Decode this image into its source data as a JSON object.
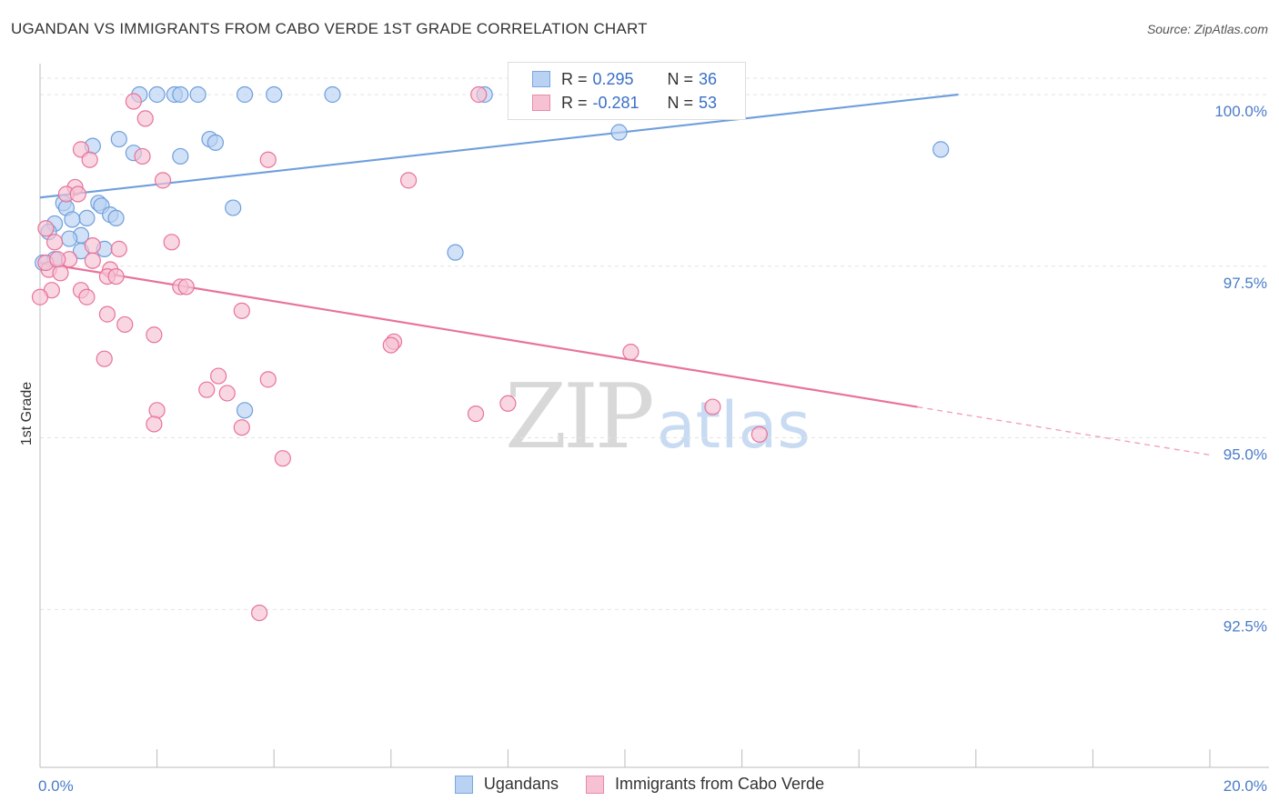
{
  "header": {
    "title": "UGANDAN VS IMMIGRANTS FROM CABO VERDE 1ST GRADE CORRELATION CHART",
    "source": "Source: ZipAtlas.com"
  },
  "legend": {
    "r_label": "R =",
    "n_label": "N =",
    "series": [
      {
        "name": "Ugandans",
        "r": "0.295",
        "n": "36",
        "color": "#7aa6e0",
        "fill": "#b9d1f2"
      },
      {
        "name": "Immigrants from Cabo Verde",
        "r": "-0.281",
        "n": "53",
        "color": "#e88aa8",
        "fill": "#f6c2d3"
      }
    ]
  },
  "watermark": {
    "zip": "ZIP",
    "atlas": "atlas"
  },
  "chart_data": {
    "type": "scatter",
    "xlabel": "",
    "ylabel": "1st Grade",
    "xlim": [
      0,
      20
    ],
    "ylim": [
      90.2,
      100.45
    ],
    "x_tick_labels": [
      "0.0%",
      "20.0%"
    ],
    "y_ticks": [
      {
        "value": 100.0,
        "label": "100.0%"
      },
      {
        "value": 97.5,
        "label": "97.5%"
      },
      {
        "value": 95.0,
        "label": "95.0%"
      },
      {
        "value": 92.5,
        "label": "92.5%"
      }
    ],
    "grid": true,
    "series": [
      {
        "name": "Ugandans",
        "color": "#6f9fdc",
        "fill": "#b9d1f2",
        "trend": {
          "x0": 0.0,
          "y0": 98.5,
          "x1": 15.7,
          "y1": 100.0,
          "dash_to": null
        },
        "points": [
          [
            1.7,
            100.0
          ],
          [
            2.0,
            100.0
          ],
          [
            2.3,
            100.0
          ],
          [
            2.4,
            100.0
          ],
          [
            2.7,
            100.0
          ],
          [
            3.5,
            100.0
          ],
          [
            4.0,
            100.0
          ],
          [
            5.0,
            100.0
          ],
          [
            7.6,
            100.0
          ],
          [
            1.35,
            99.35
          ],
          [
            1.6,
            99.15
          ],
          [
            2.4,
            99.1
          ],
          [
            2.9,
            99.35
          ],
          [
            3.0,
            99.3
          ],
          [
            0.9,
            99.25
          ],
          [
            15.4,
            99.2
          ],
          [
            9.9,
            99.45
          ],
          [
            0.4,
            98.42
          ],
          [
            0.45,
            98.35
          ],
          [
            1.0,
            98.42
          ],
          [
            1.05,
            98.38
          ],
          [
            1.2,
            98.25
          ],
          [
            1.3,
            98.2
          ],
          [
            3.3,
            98.35
          ],
          [
            0.8,
            98.2
          ],
          [
            0.55,
            98.18
          ],
          [
            0.25,
            98.12
          ],
          [
            0.15,
            98.0
          ],
          [
            0.7,
            97.95
          ],
          [
            0.5,
            97.9
          ],
          [
            1.1,
            97.75
          ],
          [
            0.7,
            97.72
          ],
          [
            7.1,
            97.7
          ],
          [
            0.25,
            97.6
          ],
          [
            0.05,
            97.55
          ],
          [
            3.5,
            95.4
          ]
        ]
      },
      {
        "name": "Immigrants from Cabo Verde",
        "color": "#e8739b",
        "fill": "#f6c2d3",
        "trend": {
          "x0": 0.0,
          "y0": 97.55,
          "x1": 15.0,
          "y1": 95.45,
          "dash_to": [
            20.0,
            94.75
          ]
        },
        "points": [
          [
            7.5,
            100.0
          ],
          [
            1.6,
            99.9
          ],
          [
            1.8,
            99.65
          ],
          [
            0.7,
            99.2
          ],
          [
            0.85,
            99.05
          ],
          [
            1.75,
            99.1
          ],
          [
            3.9,
            99.05
          ],
          [
            6.3,
            98.75
          ],
          [
            2.1,
            98.75
          ],
          [
            0.6,
            98.65
          ],
          [
            0.45,
            98.55
          ],
          [
            0.65,
            98.55
          ],
          [
            0.1,
            98.05
          ],
          [
            0.25,
            97.85
          ],
          [
            2.25,
            97.85
          ],
          [
            0.9,
            97.8
          ],
          [
            1.35,
            97.75
          ],
          [
            0.5,
            97.6
          ],
          [
            0.9,
            97.58
          ],
          [
            1.2,
            97.45
          ],
          [
            0.15,
            97.45
          ],
          [
            0.35,
            97.4
          ],
          [
            1.15,
            97.35
          ],
          [
            1.3,
            97.35
          ],
          [
            2.4,
            97.2
          ],
          [
            2.5,
            97.2
          ],
          [
            0.2,
            97.15
          ],
          [
            0.7,
            97.15
          ],
          [
            0.0,
            97.05
          ],
          [
            0.8,
            97.05
          ],
          [
            1.15,
            96.8
          ],
          [
            3.45,
            96.85
          ],
          [
            1.45,
            96.65
          ],
          [
            1.95,
            96.5
          ],
          [
            6.05,
            96.4
          ],
          [
            6.0,
            96.35
          ],
          [
            10.1,
            96.25
          ],
          [
            1.1,
            96.15
          ],
          [
            3.05,
            95.9
          ],
          [
            3.9,
            95.85
          ],
          [
            2.85,
            95.7
          ],
          [
            3.2,
            95.65
          ],
          [
            8.0,
            95.5
          ],
          [
            11.5,
            95.45
          ],
          [
            2.0,
            95.4
          ],
          [
            7.45,
            95.35
          ],
          [
            1.95,
            95.2
          ],
          [
            3.45,
            95.15
          ],
          [
            12.3,
            95.05
          ],
          [
            4.15,
            94.7
          ],
          [
            3.75,
            92.45
          ],
          [
            0.1,
            97.55
          ],
          [
            0.3,
            97.6
          ]
        ]
      }
    ]
  }
}
